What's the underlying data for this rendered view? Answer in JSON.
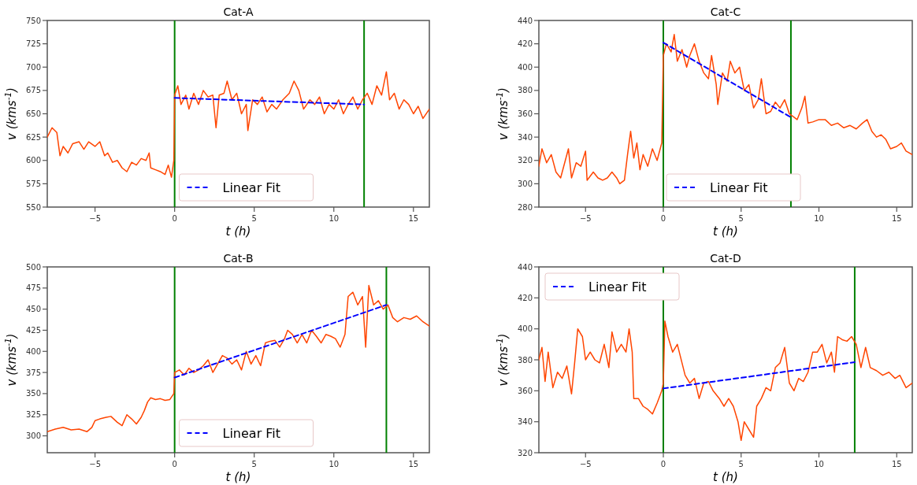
{
  "chart_data": [
    {
      "type": "line",
      "title": "Cat-A",
      "xlabel": "t (h)",
      "ylabel": "v (kms$^{-1}$)",
      "xlim": [
        -8,
        16
      ],
      "xticks": [
        -5,
        0,
        5,
        10,
        15
      ],
      "ylim": [
        550,
        750
      ],
      "yticks": [
        550,
        575,
        600,
        625,
        650,
        675,
        700,
        725,
        750
      ],
      "grid": false,
      "legend": "bottom",
      "marker": "none",
      "ref_lines": [
        {
          "axis": "x",
          "value": 0,
          "color": "#008000"
        },
        {
          "axis": "x",
          "value": 11.9,
          "color": "#008000"
        }
      ],
      "series": [
        {
          "color": "#ff4500",
          "line_style": "solid",
          "x": [
            -8,
            -7.7,
            -7.4,
            -7.2,
            -7,
            -6.7,
            -6.4,
            -6,
            -5.7,
            -5.4,
            -5,
            -4.7,
            -4.4,
            -4.2,
            -3.9,
            -3.6,
            -3.3,
            -3,
            -2.7,
            -2.4,
            -2.1,
            -1.8,
            -1.6,
            -1.5,
            -1.2,
            -0.9,
            -0.6,
            -0.4,
            -0.2,
            -0.05,
            0,
            0.2,
            0.4,
            0.7,
            0.9,
            1.2,
            1.5,
            1.8,
            2.1,
            2.4,
            2.6,
            2.8,
            3.1,
            3.3,
            3.6,
            3.9,
            4.2,
            4.5,
            4.6,
            4.9,
            5.2,
            5.5,
            5.8,
            6.1,
            6.4,
            6.8,
            7.2,
            7.5,
            7.8,
            8.1,
            8.5,
            8.8,
            9.1,
            9.4,
            9.7,
            10,
            10.3,
            10.6,
            10.9,
            11.2,
            11.5,
            11.8,
            12.1,
            12.4,
            12.7,
            13,
            13.3,
            13.5,
            13.8,
            14.1,
            14.4,
            14.7,
            15,
            15.3,
            15.6,
            16
          ],
          "values": [
            625,
            635,
            630,
            605,
            615,
            608,
            618,
            620,
            612,
            620,
            615,
            620,
            605,
            608,
            598,
            600,
            592,
            588,
            598,
            595,
            602,
            600,
            608,
            592,
            590,
            588,
            585,
            595,
            582,
            600,
            670,
            680,
            660,
            670,
            655,
            672,
            660,
            675,
            668,
            670,
            635,
            670,
            672,
            685,
            665,
            672,
            650,
            660,
            632,
            665,
            660,
            668,
            652,
            660,
            655,
            665,
            672,
            685,
            675,
            655,
            665,
            660,
            668,
            650,
            660,
            655,
            665,
            650,
            660,
            668,
            655,
            665,
            672,
            660,
            680,
            670,
            695,
            665,
            672,
            655,
            665,
            660,
            650,
            658,
            645,
            655
          ]
        },
        {
          "name": "Linear Fit",
          "type": "line",
          "color": "#0000ff",
          "line_style": "dashed",
          "x": [
            0,
            11.9
          ],
          "values": [
            667,
            660
          ]
        }
      ]
    },
    {
      "type": "line",
      "title": "Cat-C",
      "xlabel": "t (h)",
      "ylabel": "v (kms$^{-1}$)",
      "xlim": [
        -8,
        16
      ],
      "xticks": [
        -5,
        0,
        5,
        10,
        15
      ],
      "ylim": [
        280,
        440
      ],
      "yticks": [
        280,
        300,
        320,
        340,
        360,
        380,
        400,
        420,
        440
      ],
      "grid": false,
      "legend": "bottom",
      "marker": "none",
      "ref_lines": [
        {
          "axis": "x",
          "value": 0,
          "color": "#008000"
        },
        {
          "axis": "x",
          "value": 8.2,
          "color": "#008000"
        }
      ],
      "series": [
        {
          "color": "#ff4500",
          "line_style": "solid",
          "x": [
            -8,
            -7.8,
            -7.5,
            -7.2,
            -6.9,
            -6.6,
            -6.3,
            -6.1,
            -5.9,
            -5.6,
            -5.3,
            -5,
            -4.9,
            -4.5,
            -4.2,
            -3.9,
            -3.6,
            -3.3,
            -3,
            -2.8,
            -2.5,
            -2.3,
            -2.1,
            -1.9,
            -1.7,
            -1.5,
            -1.3,
            -1,
            -0.7,
            -0.4,
            -0.1,
            0,
            0.2,
            0.5,
            0.7,
            0.9,
            1.2,
            1.5,
            1.7,
            2,
            2.3,
            2.6,
            2.9,
            3.1,
            3.4,
            3.5,
            3.8,
            4.1,
            4.3,
            4.6,
            4.9,
            5.2,
            5.5,
            5.8,
            6.1,
            6.3,
            6.6,
            6.9,
            7.2,
            7.5,
            7.8,
            8.1,
            8.3,
            8.6,
            8.9,
            9.1,
            9.3,
            9.6,
            10,
            10.4,
            10.8,
            11.2,
            11.6,
            12,
            12.4,
            12.8,
            13.1,
            13.4,
            13.7,
            14,
            14.3,
            14.6,
            15,
            15.3,
            15.6,
            16
          ],
          "values": [
            315,
            330,
            318,
            325,
            310,
            305,
            320,
            330,
            305,
            318,
            315,
            328,
            303,
            310,
            305,
            303,
            305,
            310,
            305,
            300,
            303,
            325,
            345,
            322,
            335,
            312,
            325,
            315,
            330,
            320,
            335,
            410,
            420,
            413,
            428,
            405,
            415,
            400,
            410,
            420,
            405,
            395,
            390,
            410,
            385,
            368,
            395,
            388,
            405,
            395,
            400,
            380,
            385,
            365,
            372,
            390,
            360,
            362,
            370,
            365,
            372,
            360,
            358,
            355,
            365,
            375,
            352,
            353,
            355,
            355,
            350,
            352,
            348,
            350,
            347,
            352,
            355,
            345,
            340,
            342,
            338,
            330,
            332,
            335,
            328,
            325
          ]
        },
        {
          "name": "Linear Fit",
          "type": "line",
          "color": "#0000ff",
          "line_style": "dashed",
          "x": [
            0,
            8.2
          ],
          "values": [
            421,
            357
          ]
        }
      ]
    },
    {
      "type": "line",
      "title": "Cat-B",
      "xlabel": "t (h)",
      "ylabel": "v (kms$^{-1}$)",
      "xlim": [
        -8,
        16
      ],
      "xticks": [
        -5,
        0,
        5,
        10,
        15
      ],
      "ylim": [
        280,
        500
      ],
      "yticks": [
        300,
        325,
        350,
        375,
        400,
        425,
        450,
        475,
        500
      ],
      "grid": false,
      "legend": "bottom",
      "marker": "none",
      "ref_lines": [
        {
          "axis": "x",
          "value": 0,
          "color": "#008000"
        },
        {
          "axis": "x",
          "value": 13.3,
          "color": "#008000"
        }
      ],
      "series": [
        {
          "color": "#ff4500",
          "line_style": "solid",
          "x": [
            -8,
            -7.5,
            -7,
            -6.5,
            -6,
            -5.5,
            -5.2,
            -5,
            -4.7,
            -4.3,
            -4,
            -3.6,
            -3.3,
            -3,
            -2.7,
            -2.4,
            -2.1,
            -1.9,
            -1.7,
            -1.5,
            -1.2,
            -0.9,
            -0.6,
            -0.3,
            -0.05,
            0,
            0.3,
            0.6,
            0.9,
            1.2,
            1.5,
            1.8,
            2.1,
            2.4,
            2.7,
            3,
            3.3,
            3.6,
            3.9,
            4.2,
            4.5,
            4.8,
            5.1,
            5.4,
            5.7,
            6,
            6.3,
            6.6,
            6.9,
            7.1,
            7.4,
            7.7,
            8,
            8.3,
            8.6,
            8.9,
            9.2,
            9.5,
            9.8,
            10.1,
            10.4,
            10.7,
            10.9,
            11.2,
            11.5,
            11.8,
            12,
            12.2,
            12.5,
            12.8,
            13.1,
            13.4,
            13.7,
            14,
            14.4,
            14.8,
            15.2,
            15.6,
            16
          ],
          "values": [
            305,
            308,
            310,
            307,
            308,
            305,
            310,
            318,
            320,
            322,
            323,
            316,
            312,
            325,
            320,
            314,
            322,
            330,
            340,
            345,
            343,
            344,
            342,
            343,
            350,
            375,
            378,
            372,
            380,
            375,
            378,
            383,
            390,
            375,
            385,
            395,
            392,
            385,
            390,
            378,
            400,
            385,
            395,
            383,
            410,
            412,
            413,
            405,
            415,
            425,
            420,
            410,
            420,
            410,
            425,
            418,
            410,
            420,
            418,
            415,
            405,
            420,
            465,
            470,
            455,
            465,
            405,
            478,
            455,
            460,
            450,
            455,
            440,
            435,
            440,
            438,
            442,
            435,
            430
          ]
        },
        {
          "name": "Linear Fit",
          "type": "line",
          "color": "#0000ff",
          "line_style": "dashed",
          "x": [
            0,
            13.3
          ],
          "values": [
            369,
            455
          ]
        }
      ]
    },
    {
      "type": "line",
      "title": "Cat-D",
      "xlabel": "t (h)",
      "ylabel": "v (kms$^{-1}$)",
      "xlim": [
        -8,
        16
      ],
      "xticks": [
        -5,
        0,
        5,
        10,
        15
      ],
      "ylim": [
        320,
        440
      ],
      "yticks": [
        320,
        340,
        360,
        380,
        400,
        420,
        440
      ],
      "grid": false,
      "legend": "top left",
      "marker": "none",
      "ref_lines": [
        {
          "axis": "x",
          "value": 0,
          "color": "#008000"
        },
        {
          "axis": "x",
          "value": 12.3,
          "color": "#008000"
        }
      ],
      "series": [
        {
          "color": "#ff4500",
          "line_style": "solid",
          "x": [
            -8,
            -7.8,
            -7.6,
            -7.4,
            -7.1,
            -6.8,
            -6.5,
            -6.2,
            -5.9,
            -5.7,
            -5.5,
            -5.2,
            -5,
            -4.7,
            -4.4,
            -4.1,
            -3.8,
            -3.5,
            -3.3,
            -3,
            -2.7,
            -2.4,
            -2.2,
            -2,
            -1.9,
            -1.6,
            -1.3,
            -1,
            -0.7,
            -0.4,
            -0.1,
            0,
            0.1,
            0.3,
            0.6,
            0.9,
            1.2,
            1.4,
            1.7,
            2,
            2.3,
            2.6,
            2.9,
            3.2,
            3.6,
            3.9,
            4.2,
            4.5,
            4.8,
            5,
            5.2,
            5.5,
            5.8,
            6,
            6.3,
            6.6,
            6.9,
            7.2,
            7.5,
            7.8,
            8.1,
            8.4,
            8.7,
            9,
            9.3,
            9.6,
            9.9,
            10.2,
            10.5,
            10.8,
            11,
            11.2,
            11.5,
            11.8,
            12.1,
            12.4,
            12.7,
            13,
            13.3,
            13.7,
            14.1,
            14.5,
            14.9,
            15.2,
            15.6,
            16
          ],
          "values": [
            380,
            388,
            366,
            385,
            362,
            372,
            368,
            376,
            358,
            378,
            400,
            395,
            380,
            385,
            380,
            378,
            390,
            375,
            398,
            385,
            390,
            385,
            400,
            385,
            355,
            355,
            350,
            348,
            345,
            352,
            360,
            365,
            405,
            395,
            385,
            390,
            378,
            370,
            365,
            368,
            355,
            365,
            366,
            360,
            355,
            350,
            355,
            350,
            340,
            328,
            340,
            335,
            330,
            350,
            355,
            362,
            360,
            375,
            378,
            388,
            365,
            360,
            368,
            366,
            372,
            385,
            385,
            390,
            378,
            385,
            372,
            395,
            393,
            392,
            395,
            390,
            375,
            388,
            375,
            373,
            370,
            372,
            368,
            370,
            362,
            365
          ]
        },
        {
          "name": "Linear Fit",
          "type": "line",
          "color": "#0000ff",
          "line_style": "dashed",
          "x": [
            0,
            12.3
          ],
          "values": [
            361.5,
            378.5
          ]
        }
      ]
    }
  ]
}
